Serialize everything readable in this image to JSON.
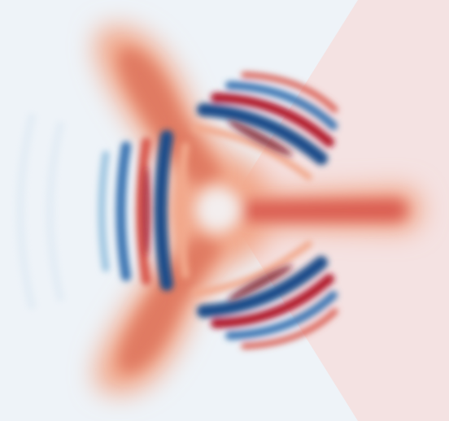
{
  "palette": {
    "background": "#eef3f8",
    "wedge": "#f5dede",
    "red_deep": "#b0182c",
    "red_mid": "#d9594d",
    "red_light": "#f2a78a",
    "red_pale": "#f7d9cc",
    "blue_deep": "#1f4e8a",
    "blue_mid": "#3b74b2",
    "blue_light": "#9cc4e0",
    "blue_pale": "#d9e8f3",
    "core": "#f3eeee"
  }
}
